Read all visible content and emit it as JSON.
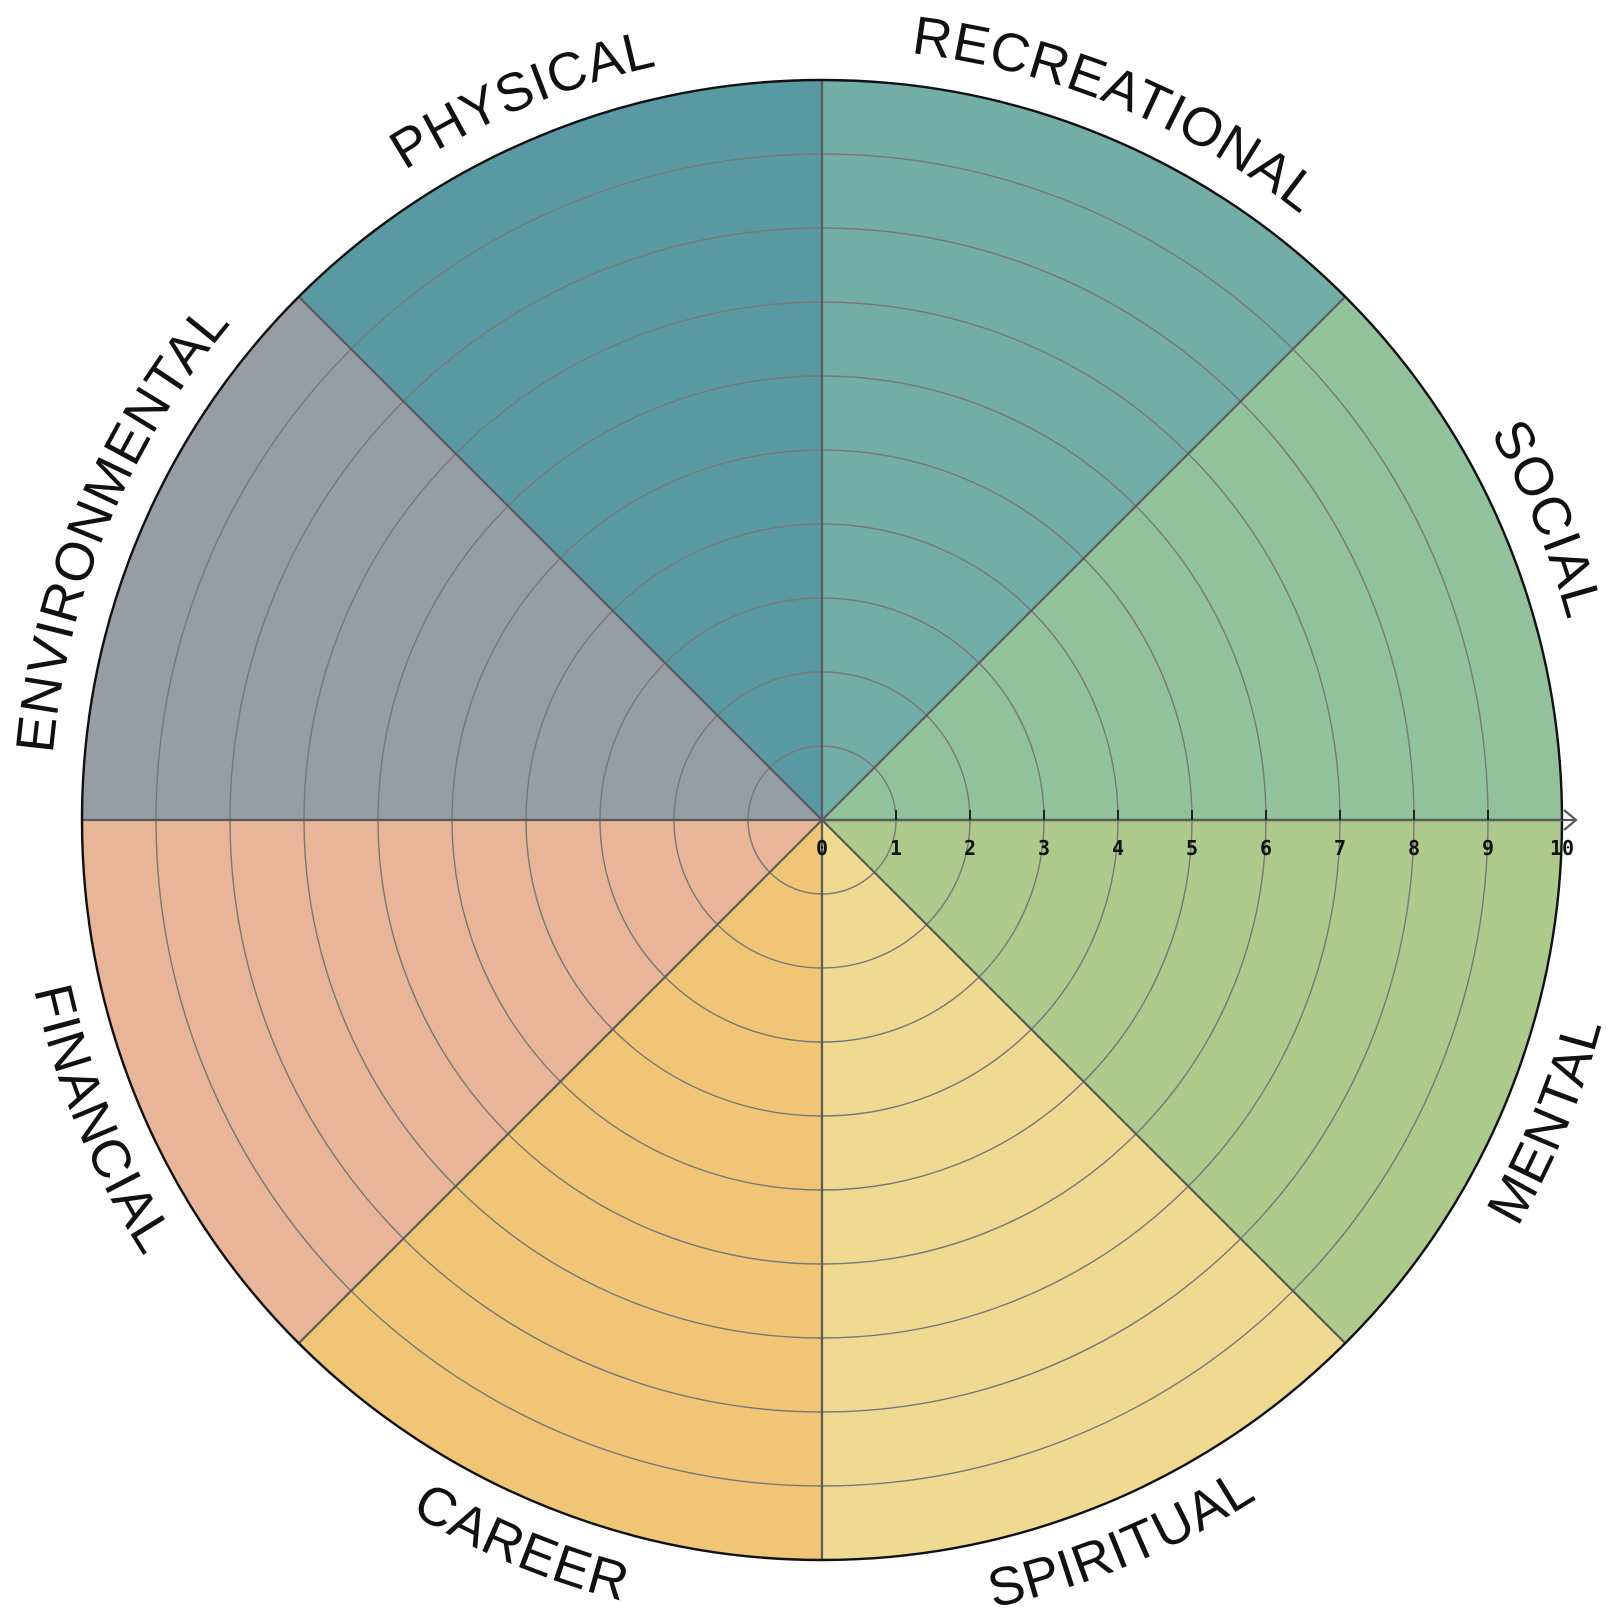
{
  "segments": [
    {
      "label": "RECREATIONAL",
      "color": "#73ADA7"
    },
    {
      "label": "SOCIAL",
      "color": "#92C29C"
    },
    {
      "label": "MENTAL",
      "color": "#AEC98C"
    },
    {
      "label": "SPIRITUAL",
      "color": "#F0DA92"
    },
    {
      "label": "CAREER",
      "color": "#F0C676"
    },
    {
      "label": "FINANCIAL",
      "color": "#E8B598"
    },
    {
      "label": "ENVIRONMENTAL",
      "color": "#979DA5"
    },
    {
      "label": "PHYSICAL",
      "color": "#5899A4"
    }
  ],
  "scale": {
    "min": 0,
    "max": 10,
    "ticks": [
      "0",
      "1",
      "2",
      "3",
      "4",
      "5",
      "6",
      "7",
      "8",
      "9",
      "10"
    ]
  },
  "colors": {
    "divider": "#5a5a5a",
    "ring": "#777777",
    "outline": "#111111"
  }
}
